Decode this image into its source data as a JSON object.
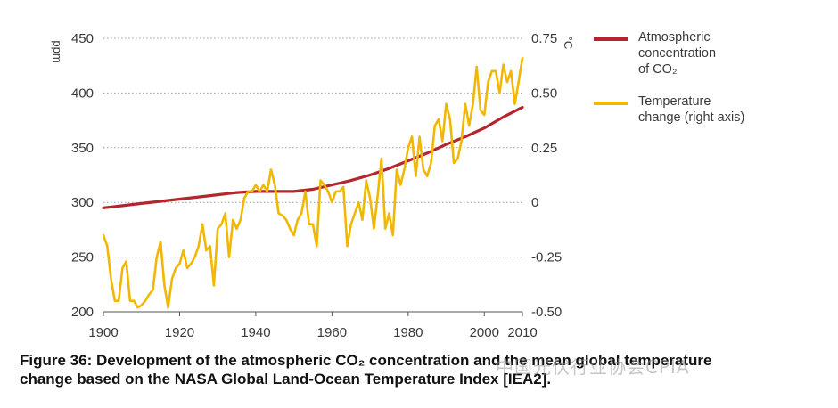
{
  "chart_data": {
    "type": "line",
    "title": "",
    "x_ticks": [
      "1900",
      "1920",
      "1940",
      "1960",
      "1980",
      "2000",
      "2010"
    ],
    "x_tick_values": [
      1900,
      1920,
      1940,
      1960,
      1980,
      2000,
      2010
    ],
    "xlim": [
      1900,
      2010
    ],
    "left_axis": {
      "unit": "ppm",
      "ylim": [
        200,
        450
      ],
      "ticks": [
        "200",
        "250",
        "300",
        "350",
        "400",
        "450"
      ],
      "tick_values": [
        200,
        250,
        300,
        350,
        400,
        450
      ]
    },
    "right_axis": {
      "unit": "°C",
      "ylim": [
        -0.5,
        0.75
      ],
      "ticks": [
        "-0.50",
        "-0.25",
        "0",
        "0.25",
        "0.50",
        "0.75"
      ],
      "tick_values": [
        -0.5,
        -0.25,
        0,
        0.25,
        0.5,
        0.75
      ]
    },
    "grid": true,
    "legend_position": "right",
    "series": [
      {
        "name": "Atmospheric concentration of CO₂",
        "legend_lines": [
          "Atmospheric",
          "concentration",
          "of CO₂"
        ],
        "axis": "left",
        "color": "#b5252e",
        "x": [
          1900,
          1905,
          1910,
          1915,
          1920,
          1925,
          1930,
          1935,
          1940,
          1945,
          1950,
          1955,
          1960,
          1965,
          1970,
          1975,
          1980,
          1985,
          1990,
          1995,
          2000,
          2005,
          2010
        ],
        "y": [
          295,
          297,
          299,
          301,
          303,
          305,
          307,
          309,
          310,
          310,
          310,
          312,
          316,
          320,
          325,
          331,
          338,
          345,
          353,
          360,
          368,
          378,
          387
        ]
      },
      {
        "name": "Temperature change (right axis)",
        "legend_lines": [
          "Temperature",
          "change (right axis)"
        ],
        "axis": "right",
        "color": "#f2b705",
        "x": [
          1900,
          1901,
          1902,
          1903,
          1904,
          1905,
          1906,
          1907,
          1908,
          1909,
          1910,
          1911,
          1912,
          1913,
          1914,
          1915,
          1916,
          1917,
          1918,
          1919,
          1920,
          1921,
          1922,
          1923,
          1924,
          1925,
          1926,
          1927,
          1928,
          1929,
          1930,
          1931,
          1932,
          1933,
          1934,
          1935,
          1936,
          1937,
          1938,
          1939,
          1940,
          1941,
          1942,
          1943,
          1944,
          1945,
          1946,
          1947,
          1948,
          1949,
          1950,
          1951,
          1952,
          1953,
          1954,
          1955,
          1956,
          1957,
          1958,
          1959,
          1960,
          1961,
          1962,
          1963,
          1964,
          1965,
          1966,
          1967,
          1968,
          1969,
          1970,
          1971,
          1972,
          1973,
          1974,
          1975,
          1976,
          1977,
          1978,
          1979,
          1980,
          1981,
          1982,
          1983,
          1984,
          1985,
          1986,
          1987,
          1988,
          1989,
          1990,
          1991,
          1992,
          1993,
          1994,
          1995,
          1996,
          1997,
          1998,
          1999,
          2000,
          2001,
          2002,
          2003,
          2004,
          2005,
          2006,
          2007,
          2008,
          2009,
          2010
        ],
        "y": [
          -0.15,
          -0.2,
          -0.35,
          -0.45,
          -0.45,
          -0.3,
          -0.27,
          -0.45,
          -0.45,
          -0.48,
          -0.47,
          -0.45,
          -0.42,
          -0.4,
          -0.25,
          -0.18,
          -0.38,
          -0.48,
          -0.35,
          -0.3,
          -0.28,
          -0.22,
          -0.3,
          -0.28,
          -0.25,
          -0.2,
          -0.1,
          -0.22,
          -0.2,
          -0.38,
          -0.12,
          -0.1,
          -0.05,
          -0.25,
          -0.08,
          -0.12,
          -0.08,
          0.02,
          0.05,
          0.05,
          0.08,
          0.05,
          0.08,
          0.05,
          0.15,
          0.08,
          -0.05,
          -0.06,
          -0.08,
          -0.12,
          -0.15,
          -0.08,
          -0.05,
          0.05,
          -0.1,
          -0.1,
          -0.2,
          0.1,
          0.08,
          0.05,
          0.0,
          0.05,
          0.05,
          0.07,
          -0.2,
          -0.1,
          -0.05,
          0.0,
          -0.08,
          0.1,
          0.02,
          -0.12,
          0.03,
          0.2,
          -0.12,
          -0.05,
          -0.15,
          0.15,
          0.08,
          0.15,
          0.25,
          0.3,
          0.12,
          0.3,
          0.15,
          0.12,
          0.18,
          0.35,
          0.38,
          0.28,
          0.45,
          0.38,
          0.18,
          0.2,
          0.28,
          0.45,
          0.35,
          0.45,
          0.62,
          0.42,
          0.4,
          0.55,
          0.6,
          0.6,
          0.5,
          0.63,
          0.55,
          0.6,
          0.45,
          0.55,
          0.66
        ]
      }
    ]
  },
  "caption": {
    "line1": "Figure 36: Development of the atmospheric CO₂ concentration and the mean global temperature",
    "line2": "change based on the NASA Global Land-Ocean Temperature Index [IEA2]."
  },
  "watermark": "中国光伏行业协会CPIA"
}
